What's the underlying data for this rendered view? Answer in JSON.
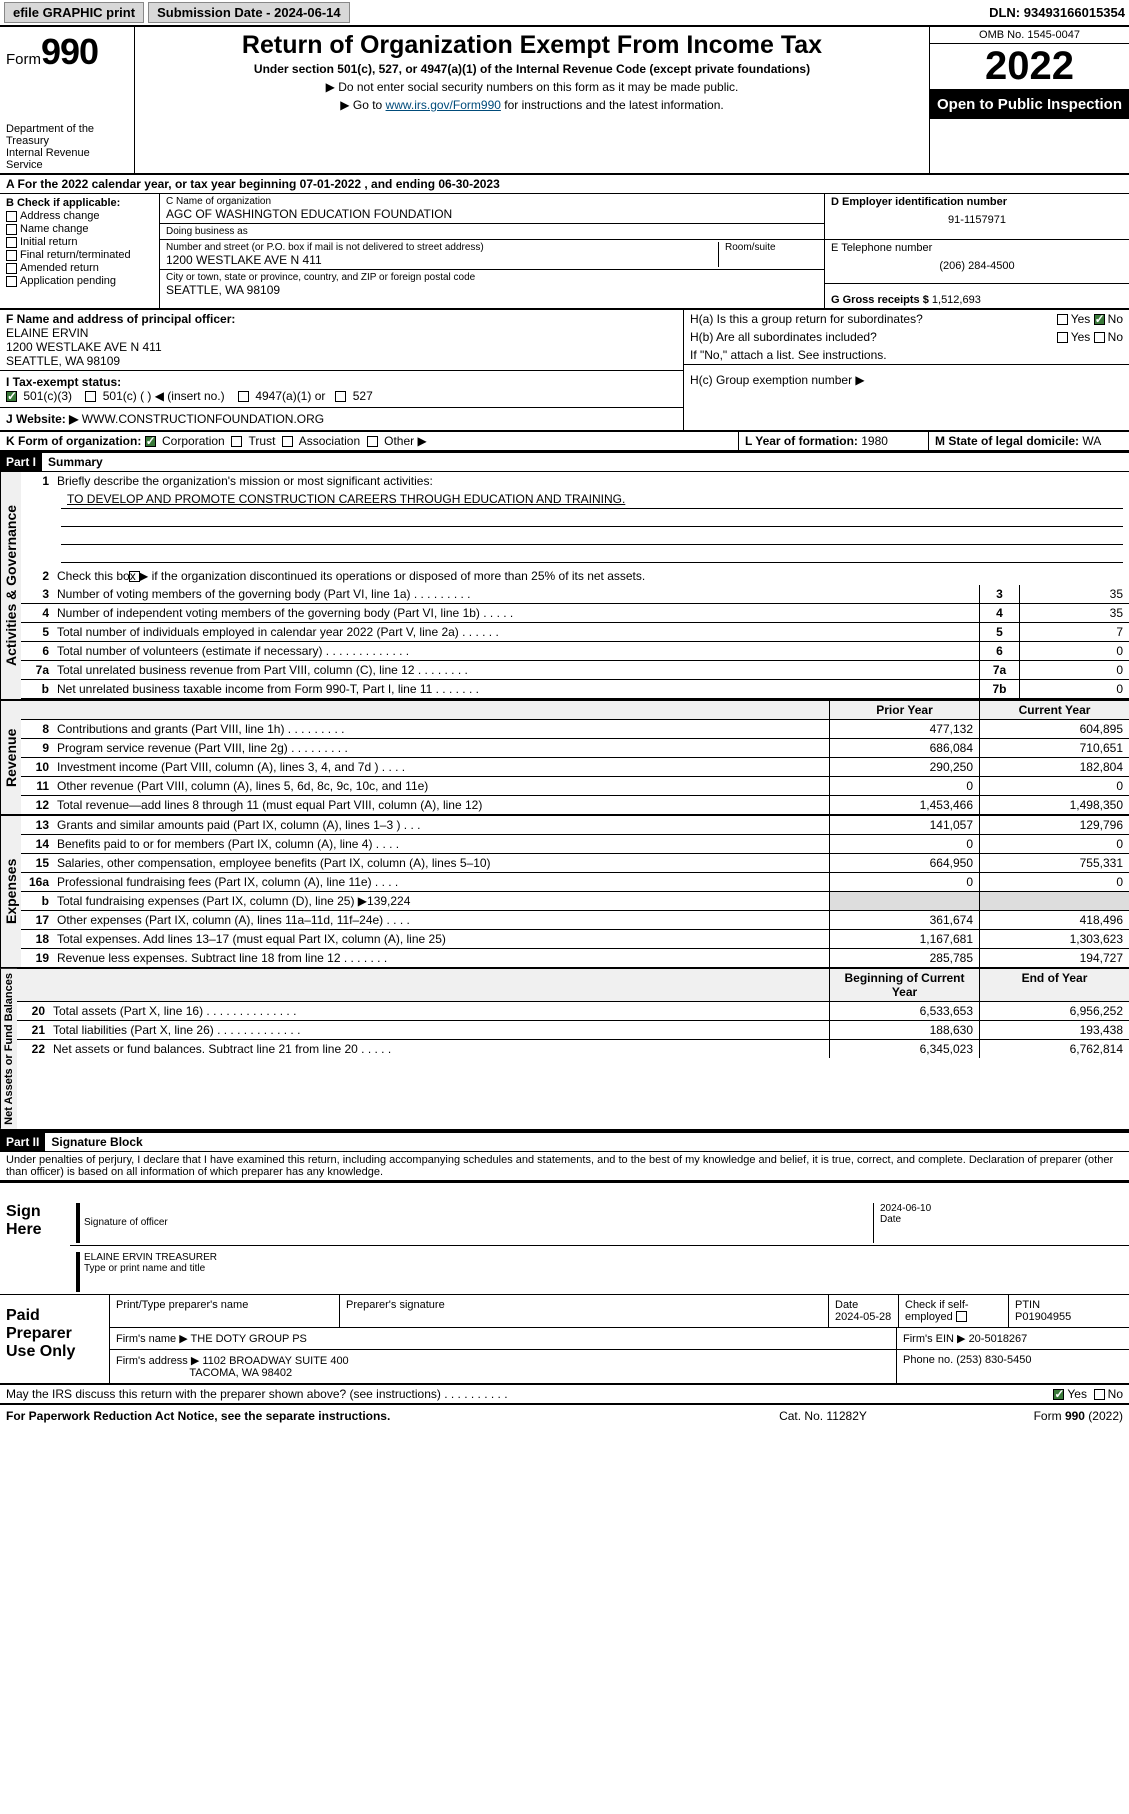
{
  "topbar": {
    "efile": "efile GRAPHIC print",
    "submission_label": "Submission Date - ",
    "submission_date": "2024-06-14",
    "dln_label": "DLN: ",
    "dln": "93493166015354"
  },
  "header": {
    "form_prefix": "Form",
    "form_num": "990",
    "dept": "Department of the Treasury",
    "irs": "Internal Revenue Service",
    "title": "Return of Organization Exempt From Income Tax",
    "subtitle": "Under section 501(c), 527, or 4947(a)(1) of the Internal Revenue Code (except private foundations)",
    "note1": "▶ Do not enter social security numbers on this form as it may be made public.",
    "note2_pre": "▶ Go to ",
    "note2_link": "www.irs.gov/Form990",
    "note2_post": " for instructions and the latest information.",
    "omb": "OMB No. 1545-0047",
    "year": "2022",
    "inspect": "Open to Public Inspection"
  },
  "A": {
    "text": "A For the 2022 calendar year, or tax year beginning 07-01-2022    , and ending 06-30-2023"
  },
  "B": {
    "label": "B Check if applicable:",
    "items": [
      "Address change",
      "Name change",
      "Initial return",
      "Final return/terminated",
      "Amended return",
      "Application pending"
    ]
  },
  "C": {
    "name_lbl": "C Name of organization",
    "name": "AGC OF WASHINGTON EDUCATION FOUNDATION",
    "dba_lbl": "Doing business as",
    "dba": "",
    "street_lbl": "Number and street (or P.O. box if mail is not delivered to street address)",
    "room_lbl": "Room/suite",
    "street": "1200 WESTLAKE AVE N 411",
    "city_lbl": "City or town, state or province, country, and ZIP or foreign postal code",
    "city": "SEATTLE, WA  98109"
  },
  "D": {
    "lbl": "D Employer identification number",
    "val": "91-1157971"
  },
  "E": {
    "lbl": "E Telephone number",
    "val": "(206) 284-4500"
  },
  "G": {
    "lbl": "G Gross receipts $ ",
    "val": "1,512,693"
  },
  "F": {
    "lbl": "F Name and address of principal officer:",
    "name": "ELAINE ERVIN",
    "addr1": "1200 WESTLAKE AVE N 411",
    "addr2": "SEATTLE, WA  98109"
  },
  "H": {
    "a": "H(a)  Is this a group return for subordinates?",
    "b": "H(b)  Are all subordinates included?",
    "b_note": "If \"No,\" attach a list. See instructions.",
    "c": "H(c)  Group exemption number ▶",
    "yes": "Yes",
    "no": "No"
  },
  "I": {
    "lbl": "I   Tax-exempt status:",
    "opts": [
      "501(c)(3)",
      "501(c) (  ) ◀ (insert no.)",
      "4947(a)(1) or",
      "527"
    ]
  },
  "J": {
    "lbl": "J   Website: ▶",
    "val": "WWW.CONSTRUCTIONFOUNDATION.ORG"
  },
  "K": {
    "lbl": "K Form of organization:",
    "opts": [
      "Corporation",
      "Trust",
      "Association",
      "Other ▶"
    ]
  },
  "L": {
    "lbl": "L Year of formation: ",
    "val": "1980"
  },
  "M": {
    "lbl": "M State of legal domicile: ",
    "val": "WA"
  },
  "partI": {
    "num": "Part I",
    "title": "Summary"
  },
  "summary": {
    "q1": "Briefly describe the organization's mission or most significant activities:",
    "mission": "TO DEVELOP AND PROMOTE CONSTRUCTION CAREERS THROUGH EDUCATION AND TRAINING.",
    "q2": "Check this box ▶        if the organization discontinued its operations or disposed of more than 25% of its net assets.",
    "lines_small": [
      {
        "n": "3",
        "t": "Number of voting members of the governing body (Part VI, line 1a)   .    .    .    .    .    .    .    .    .",
        "b": "3",
        "v": "35"
      },
      {
        "n": "4",
        "t": "Number of independent voting members of the governing body (Part VI, line 1b)   .    .    .    .    .",
        "b": "4",
        "v": "35"
      },
      {
        "n": "5",
        "t": "Total number of individuals employed in calendar year 2022 (Part V, line 2a)   .    .    .    .    .    .",
        "b": "5",
        "v": "7"
      },
      {
        "n": "6",
        "t": "Total number of volunteers (estimate if necessary)   .    .    .    .    .    .    .    .    .    .    .    .    .",
        "b": "6",
        "v": "0"
      },
      {
        "n": "7a",
        "t": "Total unrelated business revenue from Part VIII, column (C), line 12   .    .    .    .    .    .    .    .",
        "b": "7a",
        "v": "0"
      },
      {
        "n": "b",
        "t": "Net unrelated business taxable income from Form 990-T, Part I, line 11   .    .    .    .    .    .    .",
        "b": "7b",
        "v": "0"
      }
    ],
    "prior_hdr": "Prior Year",
    "curr_hdr": "Current Year",
    "revenue": [
      {
        "n": "8",
        "t": "Contributions and grants (Part VIII, line 1h)   .    .    .    .    .    .    .    .    .",
        "p": "477,132",
        "c": "604,895"
      },
      {
        "n": "9",
        "t": "Program service revenue (Part VIII, line 2g)   .    .    .    .    .    .    .    .    .",
        "p": "686,084",
        "c": "710,651"
      },
      {
        "n": "10",
        "t": "Investment income (Part VIII, column (A), lines 3, 4, and 7d )   .    .    .    .",
        "p": "290,250",
        "c": "182,804"
      },
      {
        "n": "11",
        "t": "Other revenue (Part VIII, column (A), lines 5, 6d, 8c, 9c, 10c, and 11e)",
        "p": "0",
        "c": "0"
      },
      {
        "n": "12",
        "t": "Total revenue—add lines 8 through 11 (must equal Part VIII, column (A), line 12)",
        "p": "1,453,466",
        "c": "1,498,350"
      }
    ],
    "expenses": [
      {
        "n": "13",
        "t": "Grants and similar amounts paid (Part IX, column (A), lines 1–3 )   .    .    .",
        "p": "141,057",
        "c": "129,796"
      },
      {
        "n": "14",
        "t": "Benefits paid to or for members (Part IX, column (A), line 4)   .    .    .    .",
        "p": "0",
        "c": "0"
      },
      {
        "n": "15",
        "t": "Salaries, other compensation, employee benefits (Part IX, column (A), lines 5–10)",
        "p": "664,950",
        "c": "755,331"
      },
      {
        "n": "16a",
        "t": "Professional fundraising fees (Part IX, column (A), line 11e)   .    .    .    .",
        "p": "0",
        "c": "0"
      },
      {
        "n": "b",
        "t": "Total fundraising expenses (Part IX, column (D), line 25) ▶139,224",
        "p": "",
        "c": ""
      },
      {
        "n": "17",
        "t": "Other expenses (Part IX, column (A), lines 11a–11d, 11f–24e)   .    .    .    .",
        "p": "361,674",
        "c": "418,496"
      },
      {
        "n": "18",
        "t": "Total expenses. Add lines 13–17 (must equal Part IX, column (A), line 25)",
        "p": "1,167,681",
        "c": "1,303,623"
      },
      {
        "n": "19",
        "t": "Revenue less expenses. Subtract line 18 from line 12   .    .    .    .    .    .    .",
        "p": "285,785",
        "c": "194,727"
      }
    ],
    "beg_hdr": "Beginning of Current Year",
    "end_hdr": "End of Year",
    "netassets": [
      {
        "n": "20",
        "t": "Total assets (Part X, line 16)   .    .    .    .    .    .    .    .    .    .    .    .    .    .",
        "p": "6,533,653",
        "c": "6,956,252"
      },
      {
        "n": "21",
        "t": "Total liabilities (Part X, line 26)   .    .    .    .    .    .    .    .    .    .    .    .    .",
        "p": "188,630",
        "c": "193,438"
      },
      {
        "n": "22",
        "t": "Net assets or fund balances. Subtract line 21 from line 20   .    .    .    .    .",
        "p": "6,345,023",
        "c": "6,762,814"
      }
    ]
  },
  "vlabels": {
    "gov": "Activities & Governance",
    "rev": "Revenue",
    "exp": "Expenses",
    "net": "Net Assets or Fund Balances"
  },
  "partII": {
    "num": "Part II",
    "title": "Signature Block"
  },
  "penalties": "Under penalties of perjury, I declare that I have examined this return, including accompanying schedules and statements, and to the best of my knowledge and belief, it is true, correct, and complete. Declaration of preparer (other than officer) is based on all information of which preparer has any knowledge.",
  "sign": {
    "here": "Sign Here",
    "sig_lbl": "Signature of officer",
    "date_lbl": "Date",
    "date": "2024-06-10",
    "name": "ELAINE ERVIN TREASURER",
    "name_lbl": "Type or print name and title"
  },
  "prep": {
    "lbl": "Paid Preparer Use Only",
    "h1": "Print/Type preparer's name",
    "h2": "Preparer's signature",
    "h3": "Date",
    "h4": "Check         if self-employed",
    "h5": "PTIN",
    "date": "2024-05-28",
    "ptin": "P01904955",
    "firm_lbl": "Firm's name      ▶",
    "firm": "THE DOTY GROUP PS",
    "ein_lbl": "Firm's EIN ▶",
    "ein": "20-5018267",
    "addr_lbl": "Firm's address ▶",
    "addr": "1102 BROADWAY SUITE 400",
    "addr2": "TACOMA, WA  98402",
    "phone_lbl": "Phone no. ",
    "phone": "(253) 830-5450"
  },
  "may_discuss": "May the IRS discuss this return with the preparer shown above? (see instructions)   .    .    .    .    .    .    .    .    .    .",
  "footer": {
    "pra": "For Paperwork Reduction Act Notice, see the separate instructions.",
    "cat": "Cat. No. 11282Y",
    "form": "Form 990 (2022)"
  }
}
